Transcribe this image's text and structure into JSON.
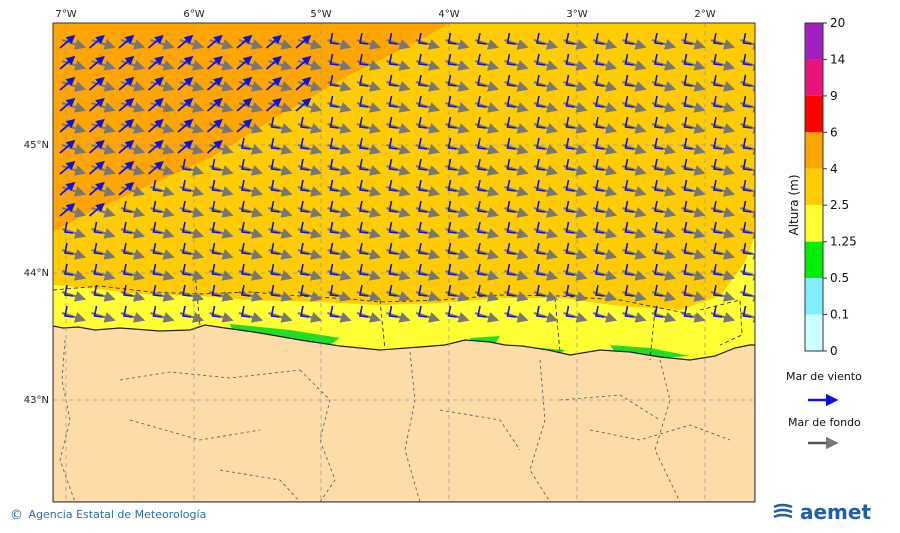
{
  "map": {
    "lon_ticks": [
      "7°W",
      "6°W",
      "5°W",
      "4°W",
      "3°W",
      "2°W"
    ],
    "lat_ticks": [
      "45°N",
      "44°N",
      "43°N"
    ],
    "extent": {
      "lon_min": -7.1,
      "lon_max": -1.6,
      "lat_min": 42.25,
      "lat_max": 46.0
    },
    "colors": {
      "sea_2_5_4": "#ffcc00",
      "sea_4_6": "#ffa500",
      "sea_1_25_2_5": "#ffff33",
      "sea_0_5_1_25": "#22dd22",
      "land": "#fddcaa",
      "wind_sea_arrow": "#1111dd",
      "swell_arrow": "#777777"
    }
  },
  "colorbar": {
    "title": "Altura (m)",
    "levels": [
      "20",
      "14",
      "9",
      "6",
      "4",
      "2.5",
      "1.25",
      "0.5",
      "0.1",
      "0"
    ],
    "colors": [
      "#a020c0",
      "#e8147a",
      "#ff0000",
      "#ffa500",
      "#ffcc00",
      "#ffff33",
      "#00ee00",
      "#80eeff",
      "#ccffff"
    ]
  },
  "legend": {
    "wind_sea_label": "Mar de viento",
    "swell_label": "Mar de fondo"
  },
  "footer": {
    "credit_symbol": "©",
    "credit": "Agencia Estatal de Meteorología",
    "brand": "aemet"
  }
}
